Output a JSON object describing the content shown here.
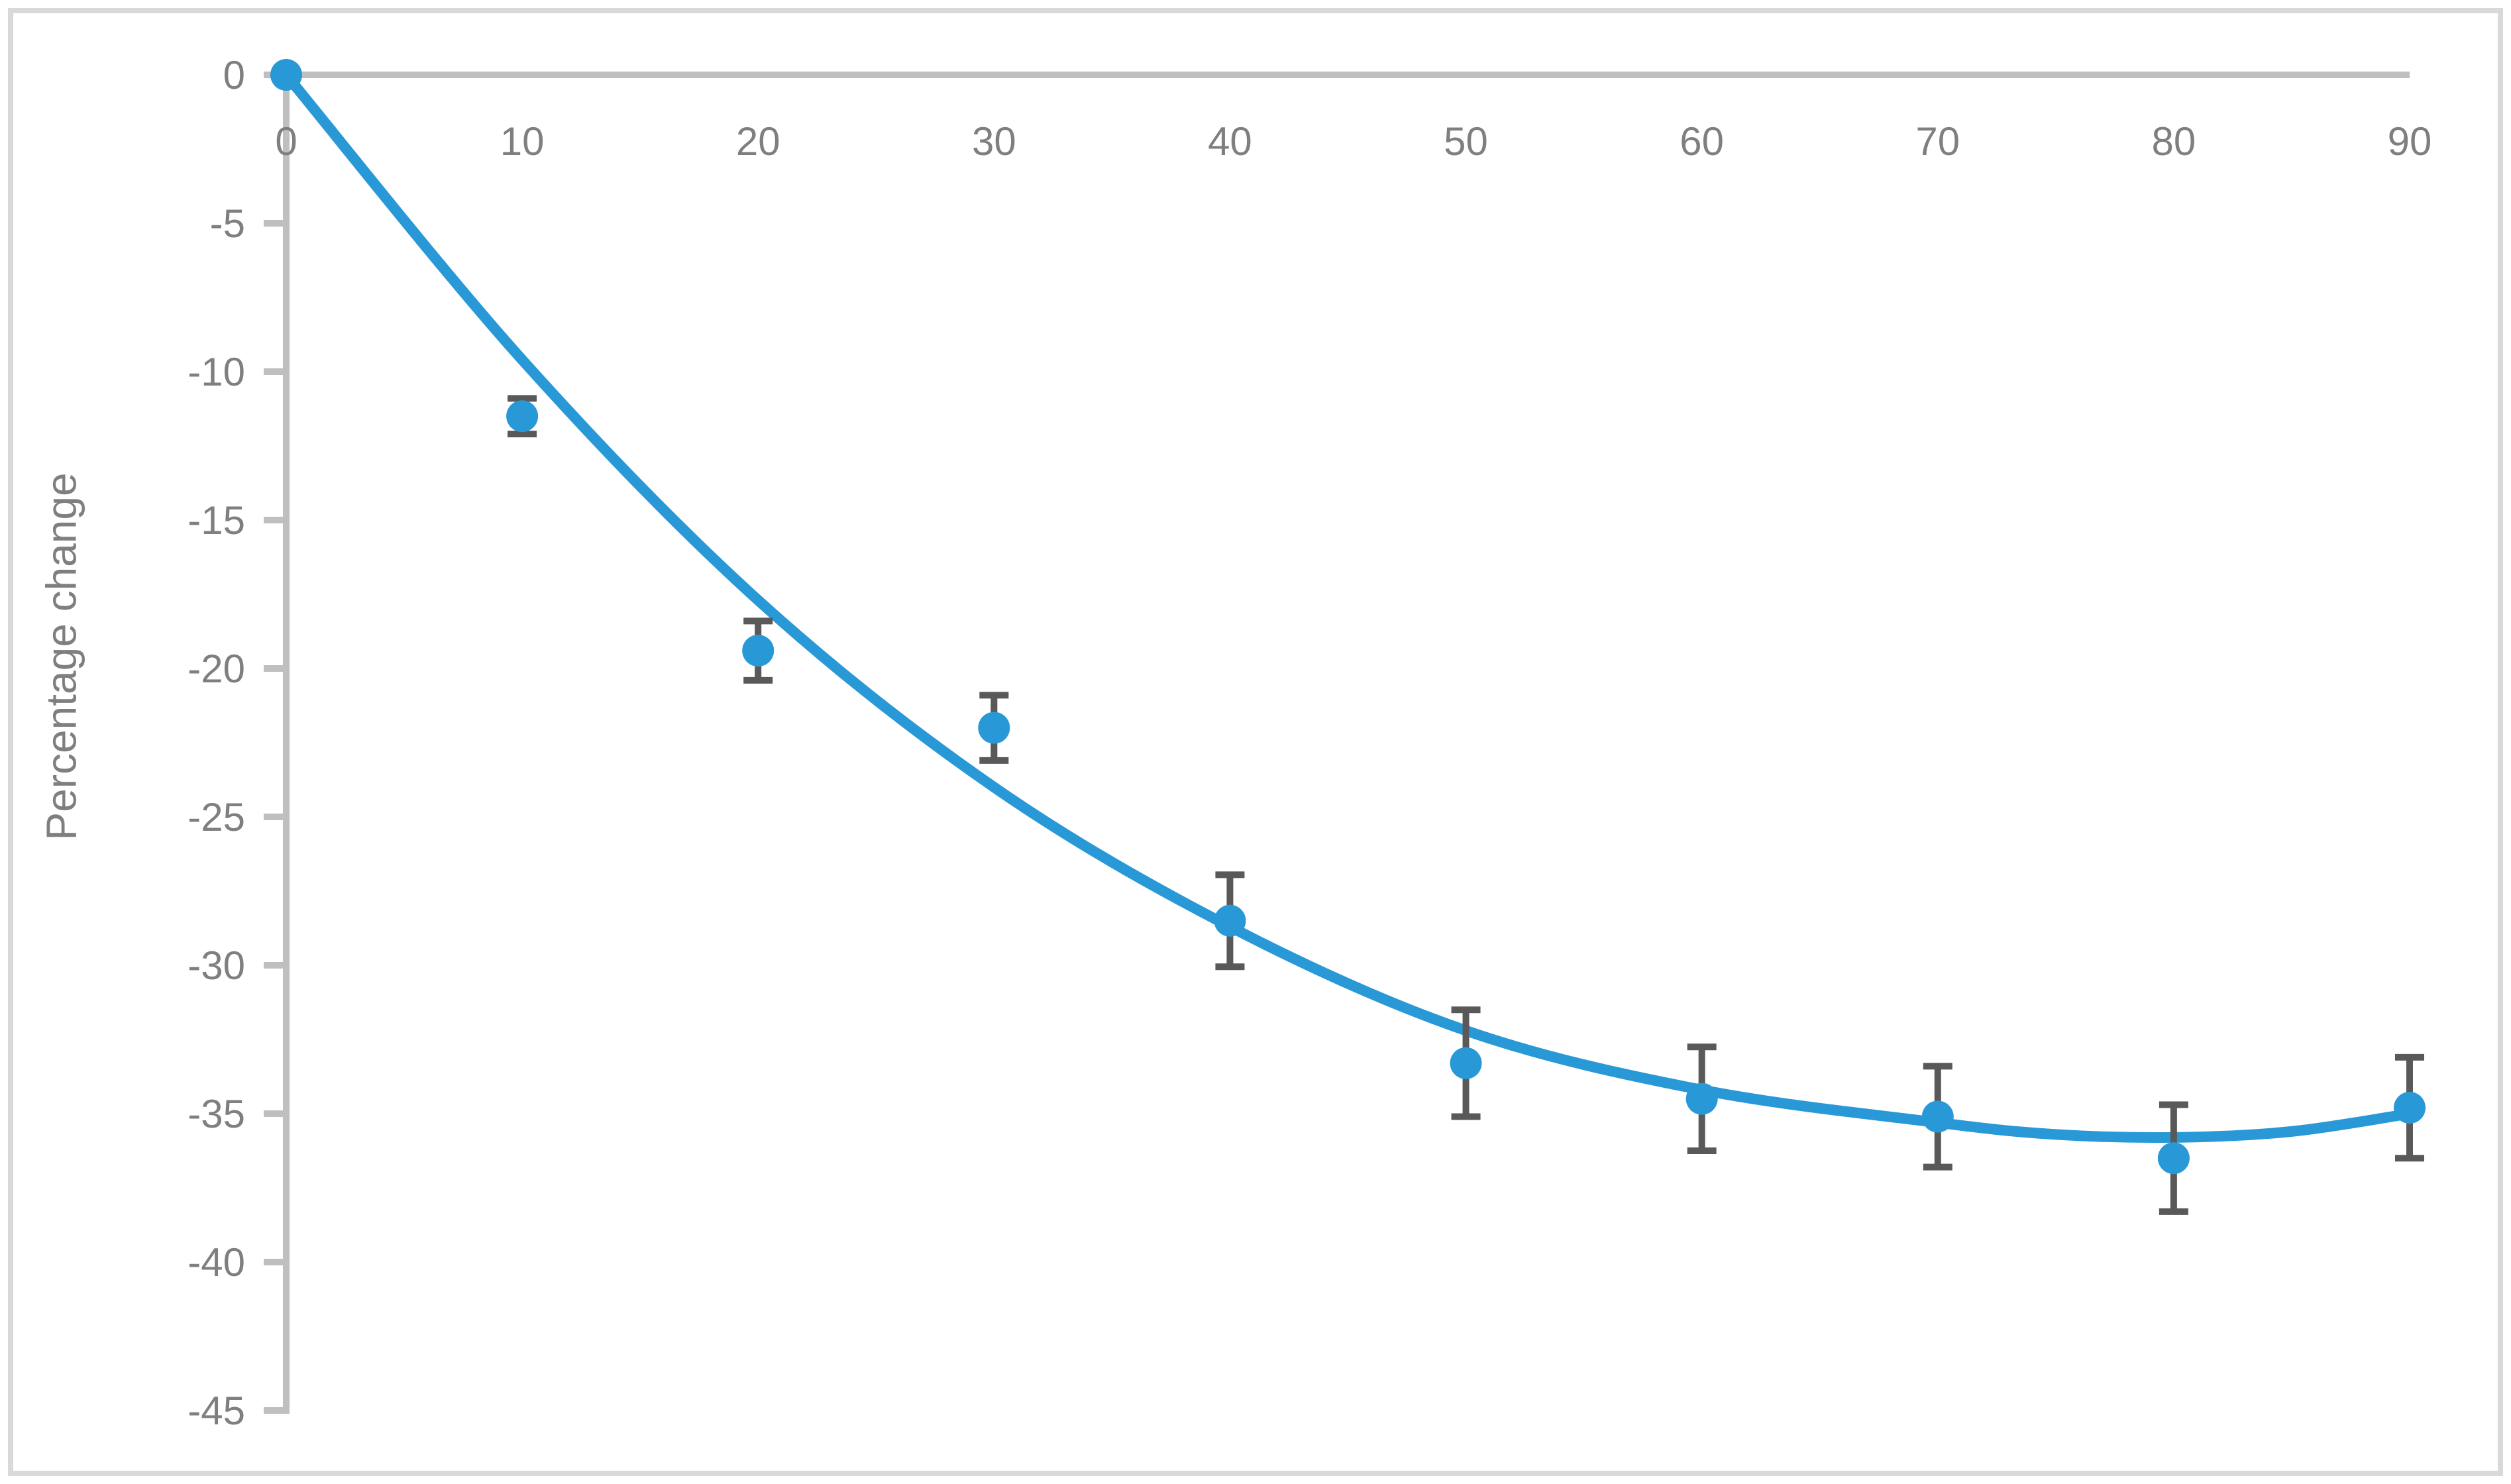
{
  "chart_data": {
    "type": "scatter",
    "title": "",
    "xlabel": "",
    "ylabel": "Percentage change",
    "xlim": [
      0,
      90
    ],
    "ylim": [
      -45,
      0
    ],
    "grid": false,
    "legend": null,
    "x_tick_labels": [
      "0",
      "10",
      "20",
      "30",
      "40",
      "50",
      "60",
      "70",
      "80",
      "90"
    ],
    "y_tick_labels": [
      "0",
      "-5",
      "-10",
      "-15",
      "-20",
      "-25",
      "-30",
      "-35",
      "-40",
      "-45"
    ],
    "series": [
      {
        "name": "percentage-change-points",
        "marker": "circle",
        "x": [
          0,
          10,
          20,
          30,
          40,
          50,
          60,
          70,
          80,
          90
        ],
        "y": [
          0,
          -11.5,
          -19.4,
          -22.0,
          -28.5,
          -33.3,
          -34.5,
          -35.1,
          -36.5,
          -34.8
        ],
        "y_error": [
          null,
          0.6,
          1.0,
          1.1,
          1.55,
          1.8,
          1.75,
          1.7,
          1.8,
          1.7
        ]
      }
    ],
    "trendline": {
      "type": "polynomial-fit-curve",
      "x": [
        0,
        10,
        20,
        30,
        40,
        50,
        60,
        70,
        75,
        80,
        85,
        90
      ],
      "y": [
        0,
        -9.6,
        -17.7,
        -24.0,
        -28.7,
        -32.2,
        -34.2,
        -35.3,
        -35.7,
        -35.8,
        -35.6,
        -35.0
      ]
    }
  },
  "style": {
    "series_color": "#2899d6",
    "error_bar_color": "#595959",
    "axis_color": "#bfbfbf",
    "tick_label_color": "#7f7f7f",
    "axis_title_color": "#7f7f7f",
    "figure_border_color": "#d9d9d9",
    "background_color": "#ffffff"
  }
}
